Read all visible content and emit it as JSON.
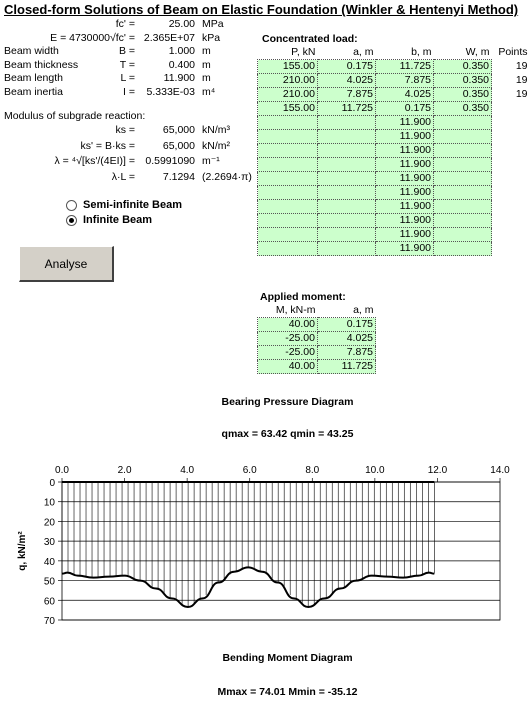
{
  "title": "Closed-form Solutions of Beam on Elastic Foundation (Winkler & Hentenyi Method)",
  "params": [
    {
      "label": "fc' =",
      "value": "25.00",
      "unit": "MPa"
    },
    {
      "label": "E = 4730000√fc' =",
      "value": "2.365E+07",
      "unit": "kPa"
    },
    {
      "label": "Beam width",
      "sym": "B =",
      "value": "1.000",
      "unit": "m"
    },
    {
      "label": "Beam thickness",
      "sym": "T =",
      "value": "0.400",
      "unit": "m"
    },
    {
      "label": "Beam length",
      "sym": "L =",
      "value": "11.900",
      "unit": "m"
    },
    {
      "label": "Beam inertia",
      "sym": "I =",
      "value": "5.333E-03",
      "unit": "m⁴"
    }
  ],
  "subgrade_label": "Modulus of subgrade reaction:",
  "subgrade": [
    {
      "label": "ks =",
      "value": "65,000",
      "unit": "kN/m³"
    },
    {
      "label": "ks' = B·ks =",
      "value": "65,000",
      "unit": "kN/m²"
    },
    {
      "label": "λ = ⁴√[ks'/(4EI)] =",
      "value": "0.5991090",
      "unit": "m⁻¹"
    },
    {
      "label": "λ·L =",
      "value": "7.1294",
      "unit": "(2.2694·π)"
    }
  ],
  "beam_options": {
    "semi": "Semi-infinite Beam",
    "infinite": "Infinite Beam",
    "selected": "infinite"
  },
  "analyse_label": "Analyse",
  "conc_load": {
    "title": "Concentrated load:",
    "headers": [
      "P, kN",
      "a, m",
      "b, m",
      "W, m",
      "Points"
    ],
    "rows": [
      [
        "155.00",
        "0.175",
        "11.725",
        "0.350",
        "19"
      ],
      [
        "210.00",
        "4.025",
        "7.875",
        "0.350",
        "19"
      ],
      [
        "210.00",
        "7.875",
        "4.025",
        "0.350",
        "19"
      ],
      [
        "155.00",
        "11.725",
        "0.175",
        "0.350",
        ""
      ],
      [
        "",
        "",
        "11.900",
        "",
        ""
      ],
      [
        "",
        "",
        "11.900",
        "",
        ""
      ],
      [
        "",
        "",
        "11.900",
        "",
        ""
      ],
      [
        "",
        "",
        "11.900",
        "",
        ""
      ],
      [
        "",
        "",
        "11.900",
        "",
        ""
      ],
      [
        "",
        "",
        "11.900",
        "",
        ""
      ],
      [
        "",
        "",
        "11.900",
        "",
        ""
      ],
      [
        "",
        "",
        "11.900",
        "",
        ""
      ],
      [
        "",
        "",
        "11.900",
        "",
        ""
      ],
      [
        "",
        "",
        "11.900",
        "",
        ""
      ]
    ]
  },
  "moment": {
    "title": "Applied moment:",
    "headers": [
      "M, kN-m",
      "a, m"
    ],
    "rows": [
      [
        "40.00",
        "0.175"
      ],
      [
        "-25.00",
        "4.025"
      ],
      [
        "-25.00",
        "7.875"
      ],
      [
        "40.00",
        "11.725"
      ]
    ]
  },
  "bearing": {
    "title": "Bearing Pressure Diagram",
    "summary": "qmax = 63.42    qmin = 43.25"
  },
  "bending": {
    "title": "Bending Moment Diagram",
    "summary": "Mmax = 74.01    Mmin = -35.12"
  },
  "chart_data": {
    "type": "line",
    "title": "",
    "ylabel": "q, kN/m²",
    "xlabel": "",
    "xlim": [
      0,
      14
    ],
    "ylim": [
      0,
      70
    ],
    "y_inverted": true,
    "x_ticks": [
      "0.0",
      "2.0",
      "4.0",
      "6.0",
      "8.0",
      "10.0",
      "12.0",
      "14.0"
    ],
    "y_ticks": [
      "0",
      "10",
      "20",
      "30",
      "40",
      "50",
      "60",
      "70"
    ],
    "grid": "horizontal",
    "series": [
      {
        "x": [
          0.0,
          0.175,
          0.5,
          1.0,
          1.5,
          2.0,
          2.5,
          3.0,
          3.5,
          4.025,
          4.5,
          5.0,
          5.5,
          5.95,
          6.4,
          6.9,
          7.4,
          7.875,
          8.4,
          8.9,
          9.4,
          9.9,
          10.4,
          10.9,
          11.4,
          11.725,
          11.9
        ],
        "y": [
          46.5,
          46.0,
          47.5,
          48.5,
          48.0,
          47.5,
          50.0,
          54.0,
          59.0,
          63.4,
          59.0,
          51.0,
          45.5,
          43.3,
          45.5,
          51.0,
          59.0,
          63.4,
          59.0,
          54.0,
          50.0,
          47.5,
          48.0,
          48.5,
          47.5,
          46.0,
          46.5
        ]
      }
    ]
  }
}
